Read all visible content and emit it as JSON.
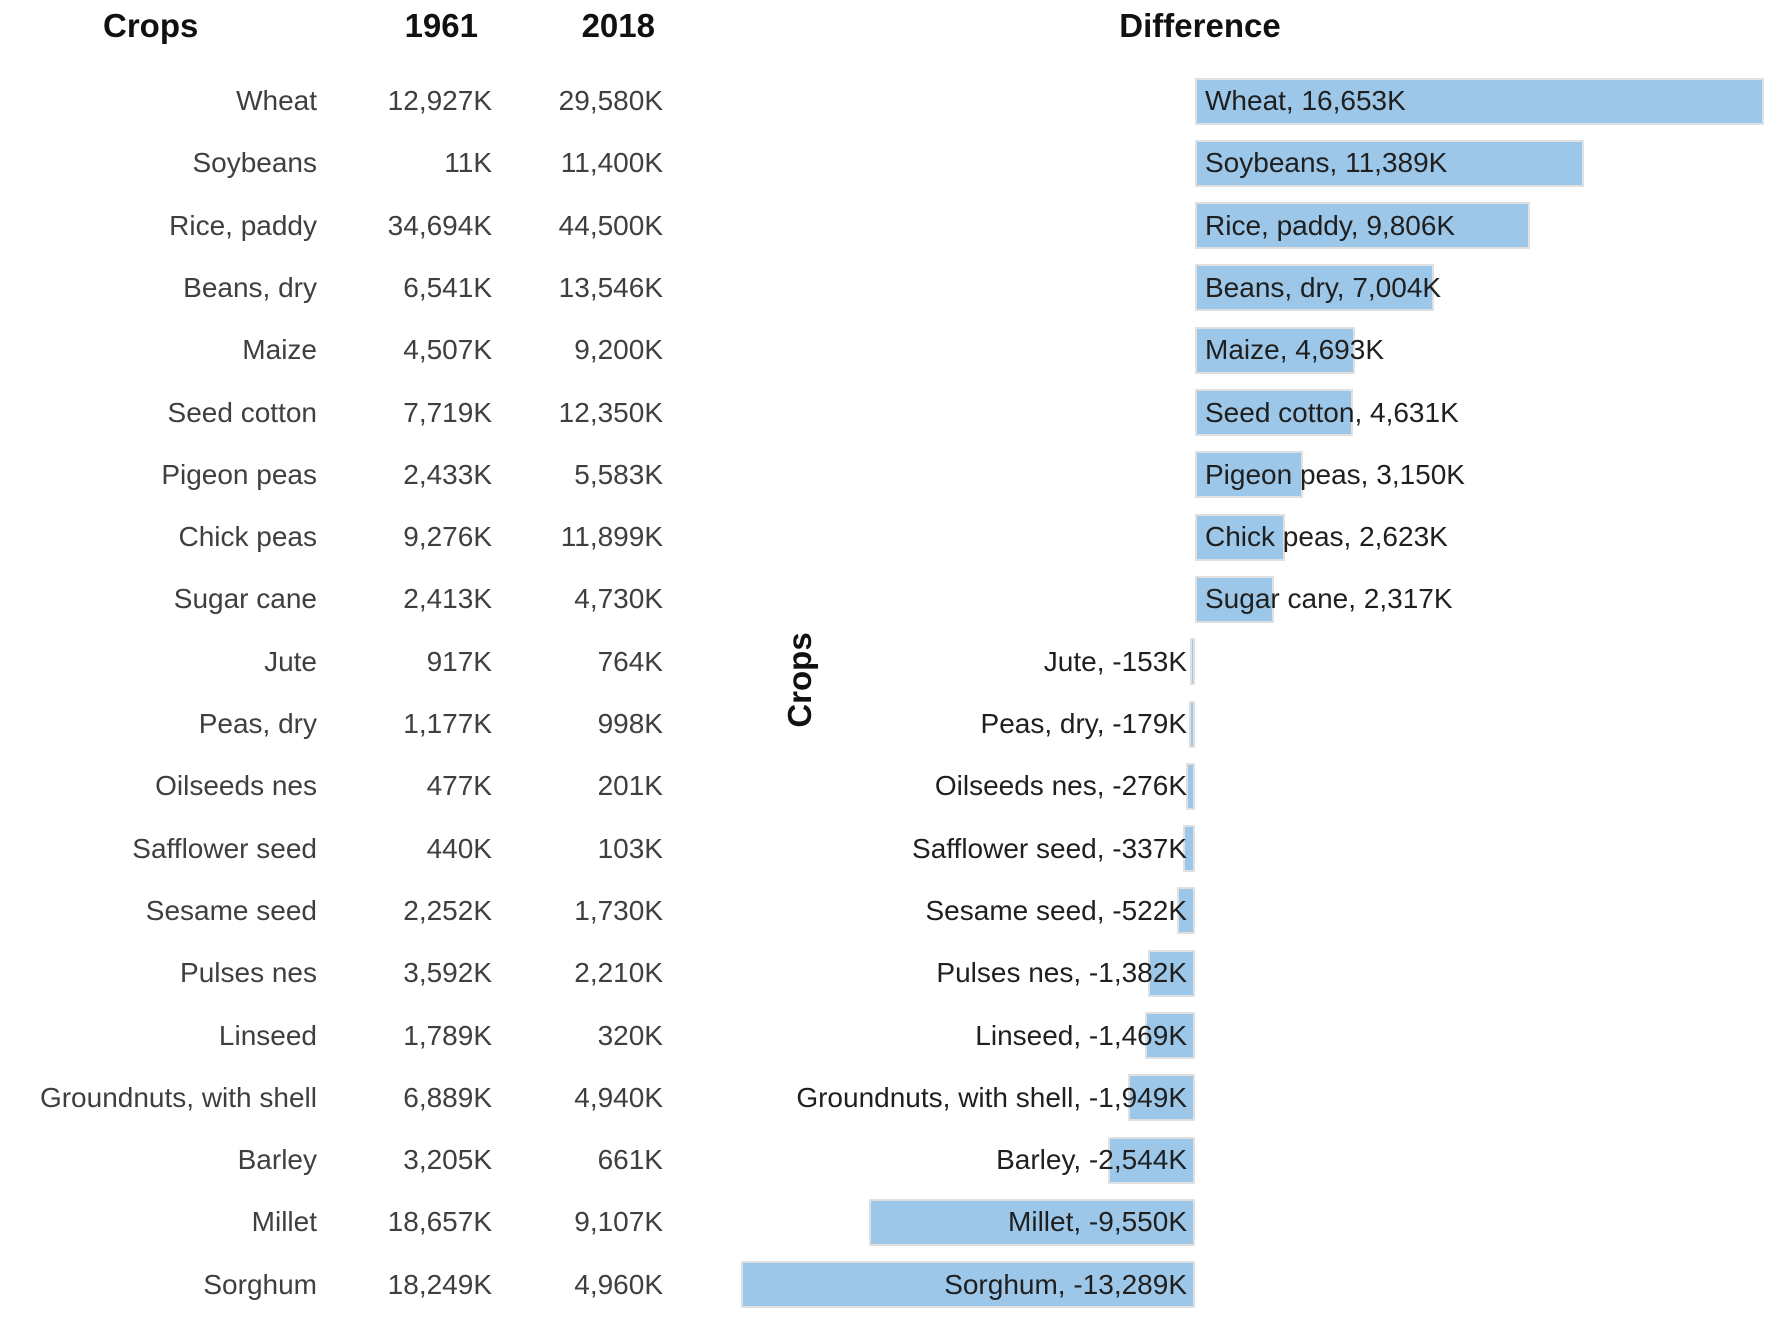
{
  "table": {
    "headers": {
      "crops": "Crops",
      "y1961": "1961",
      "y2018": "2018"
    }
  },
  "colors": {
    "bar_fill": "#9cc7e8",
    "bar_border": "#e0e0e0",
    "text": "#3f3f3f",
    "header_text": "#111111"
  },
  "rows": [
    {
      "crop": "Wheat",
      "v1961": "12,927K",
      "v2018": "29,580K",
      "diff": 16653,
      "diff_label": "Wheat, 16,653K"
    },
    {
      "crop": "Soybeans",
      "v1961": "11K",
      "v2018": "11,400K",
      "diff": 11389,
      "diff_label": "Soybeans, 11,389K"
    },
    {
      "crop": "Rice, paddy",
      "v1961": "34,694K",
      "v2018": "44,500K",
      "diff": 9806,
      "diff_label": "Rice, paddy, 9,806K"
    },
    {
      "crop": "Beans, dry",
      "v1961": "6,541K",
      "v2018": "13,546K",
      "diff": 7004,
      "diff_label": "Beans, dry, 7,004K"
    },
    {
      "crop": "Maize",
      "v1961": "4,507K",
      "v2018": "9,200K",
      "diff": 4693,
      "diff_label": "Maize, 4,693K"
    },
    {
      "crop": "Seed cotton",
      "v1961": "7,719K",
      "v2018": "12,350K",
      "diff": 4631,
      "diff_label": "Seed cotton, 4,631K"
    },
    {
      "crop": "Pigeon peas",
      "v1961": "2,433K",
      "v2018": "5,583K",
      "diff": 3150,
      "diff_label": "Pigeon peas, 3,150K"
    },
    {
      "crop": "Chick peas",
      "v1961": "9,276K",
      "v2018": "11,899K",
      "diff": 2623,
      "diff_label": "Chick peas, 2,623K"
    },
    {
      "crop": "Sugar cane",
      "v1961": "2,413K",
      "v2018": "4,730K",
      "diff": 2317,
      "diff_label": "Sugar cane, 2,317K"
    },
    {
      "crop": "Jute",
      "v1961": "917K",
      "v2018": "764K",
      "diff": -153,
      "diff_label": "Jute, -153K"
    },
    {
      "crop": "Peas, dry",
      "v1961": "1,177K",
      "v2018": "998K",
      "diff": -179,
      "diff_label": "Peas, dry, -179K"
    },
    {
      "crop": "Oilseeds nes",
      "v1961": "477K",
      "v2018": "201K",
      "diff": -276,
      "diff_label": "Oilseeds nes, -276K"
    },
    {
      "crop": "Safflower seed",
      "v1961": "440K",
      "v2018": "103K",
      "diff": -337,
      "diff_label": "Safflower seed, -337K"
    },
    {
      "crop": "Sesame seed",
      "v1961": "2,252K",
      "v2018": "1,730K",
      "diff": -522,
      "diff_label": "Sesame seed, -522K"
    },
    {
      "crop": "Pulses nes",
      "v1961": "3,592K",
      "v2018": "2,210K",
      "diff": -1382,
      "diff_label": "Pulses nes, -1,382K"
    },
    {
      "crop": "Linseed",
      "v1961": "1,789K",
      "v2018": "320K",
      "diff": -1469,
      "diff_label": "Linseed, -1,469K"
    },
    {
      "crop": "Groundnuts, with shell",
      "v1961": "6,889K",
      "v2018": "4,940K",
      "diff": -1949,
      "diff_label": "Groundnuts, with shell, -1,949K"
    },
    {
      "crop": "Barley",
      "v1961": "3,205K",
      "v2018": "661K",
      "diff": -2544,
      "diff_label": "Barley, -2,544K"
    },
    {
      "crop": "Millet",
      "v1961": "18,657K",
      "v2018": "9,107K",
      "diff": -9550,
      "diff_label": "Millet, -9,550K"
    },
    {
      "crop": "Sorghum",
      "v1961": "18,249K",
      "v2018": "4,960K",
      "diff": -13289,
      "diff_label": "Sorghum, -13,289K"
    }
  ],
  "chart_data": {
    "type": "bar",
    "orientation": "horizontal",
    "title": "Difference",
    "ylabel": "Crops",
    "unit": "K (thousands of tonnes)",
    "value_labels_visible": true,
    "grid": false,
    "legend": false,
    "xlim": [
      -16653,
      16653
    ],
    "categories": [
      "Wheat",
      "Soybeans",
      "Rice, paddy",
      "Beans, dry",
      "Maize",
      "Seed cotton",
      "Pigeon peas",
      "Chick peas",
      "Sugar cane",
      "Jute",
      "Peas, dry",
      "Oilseeds nes",
      "Safflower seed",
      "Sesame seed",
      "Pulses nes",
      "Linseed",
      "Groundnuts, with shell",
      "Barley",
      "Millet",
      "Sorghum"
    ],
    "series": [
      {
        "name": "1961",
        "values": [
          12927,
          11,
          34694,
          6541,
          4507,
          7719,
          2433,
          9276,
          2413,
          917,
          1177,
          477,
          440,
          2252,
          3592,
          1789,
          6889,
          3205,
          18657,
          18249
        ]
      },
      {
        "name": "2018",
        "values": [
          29580,
          11400,
          44500,
          13546,
          9200,
          12350,
          5583,
          11899,
          4730,
          764,
          998,
          201,
          103,
          1730,
          2210,
          320,
          4940,
          661,
          9107,
          4960
        ]
      },
      {
        "name": "Difference",
        "values": [
          16653,
          11389,
          9806,
          7004,
          4693,
          4631,
          3150,
          2623,
          2317,
          -153,
          -179,
          -276,
          -337,
          -522,
          -1382,
          -1469,
          -1949,
          -2544,
          -9550,
          -13289
        ]
      }
    ]
  }
}
